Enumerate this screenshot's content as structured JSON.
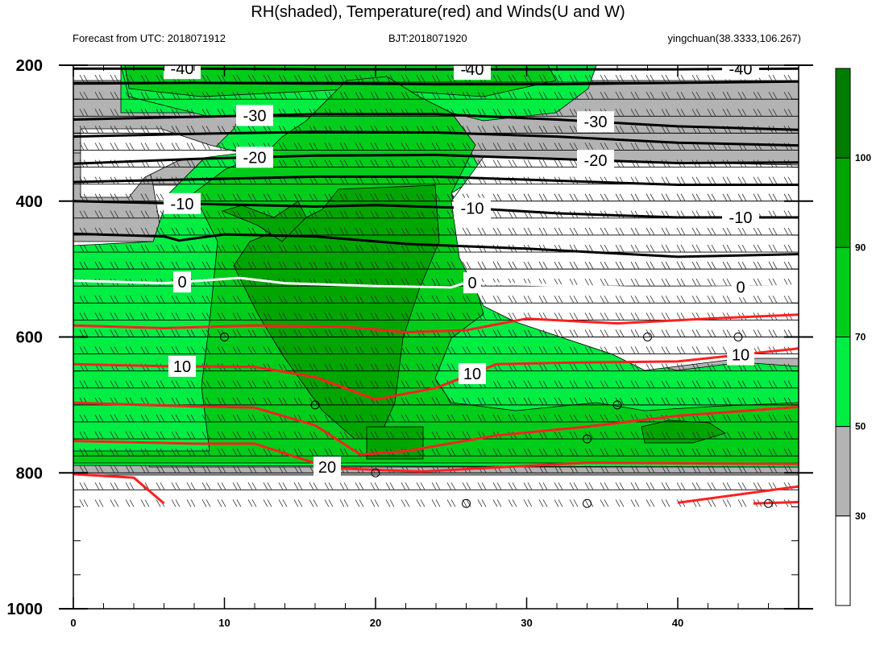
{
  "header": {
    "title": "RH(shaded), Temperature(red) and Winds(U and W)",
    "forecast": "Forecast from UTC: 2018071912",
    "bjt": "BJT:2018071920",
    "station": "yingchuan(38.3333,106.267)"
  },
  "chart_data": {
    "type": "heatmap",
    "title": "RH(shaded), Temperature(red) and Winds(U and W)",
    "x_ticks": [
      0,
      10,
      20,
      30,
      40
    ],
    "xlim": [
      0,
      48
    ],
    "y_ticks": [
      200,
      400,
      600,
      800,
      1000
    ],
    "ylim": [
      200,
      1000
    ],
    "y_inverted": true,
    "rh_levels": [
      30,
      50,
      70,
      90,
      100
    ],
    "rh_colors": [
      "#ffffff",
      "#b3b3b3",
      "#00ee44",
      "#00cd1a",
      "#00a600",
      "#007d00"
    ],
    "temperature_contours": [
      {
        "value": -40,
        "color": "#000000",
        "labels": [
          "-40",
          "-40",
          "-40"
        ],
        "points": [
          [
            0,
            205
          ],
          [
            8,
            205
          ],
          [
            16,
            206
          ],
          [
            24,
            206
          ],
          [
            32,
            206
          ],
          [
            40,
            206
          ],
          [
            48,
            205
          ]
        ]
      },
      {
        "value": -40,
        "color": "#000000",
        "labels": [],
        "points": [
          [
            0,
            227
          ],
          [
            8,
            226
          ],
          [
            16,
            227
          ],
          [
            24,
            228
          ],
          [
            32,
            228
          ],
          [
            40,
            226
          ],
          [
            48,
            224
          ]
        ]
      },
      {
        "value": -30,
        "color": "#000000",
        "labels": [
          "-30",
          "-30"
        ],
        "points": [
          [
            0,
            280
          ],
          [
            8,
            276
          ],
          [
            16,
            272
          ],
          [
            24,
            272
          ],
          [
            32,
            280
          ],
          [
            40,
            290
          ],
          [
            48,
            295
          ]
        ]
      },
      {
        "value": -30,
        "color": "#000000",
        "labels": [],
        "points": [
          [
            0,
            305
          ],
          [
            8,
            301
          ],
          [
            16,
            298
          ],
          [
            24,
            299
          ],
          [
            32,
            305
          ],
          [
            40,
            314
          ],
          [
            48,
            318
          ]
        ]
      },
      {
        "value": -20,
        "color": "#000000",
        "labels": [
          "-20",
          "-20"
        ],
        "points": [
          [
            0,
            345
          ],
          [
            8,
            338
          ],
          [
            16,
            333
          ],
          [
            24,
            332
          ],
          [
            32,
            338
          ],
          [
            40,
            344
          ],
          [
            48,
            343
          ]
        ]
      },
      {
        "value": -20,
        "color": "#000000",
        "labels": [],
        "points": [
          [
            0,
            372
          ],
          [
            8,
            368
          ],
          [
            16,
            364
          ],
          [
            24,
            364
          ],
          [
            32,
            370
          ],
          [
            40,
            376
          ],
          [
            48,
            376
          ]
        ]
      },
      {
        "value": -10,
        "color": "#000000",
        "labels": [
          "-10",
          "-10",
          "-10"
        ],
        "points": [
          [
            0,
            400
          ],
          [
            8,
            404
          ],
          [
            16,
            408
          ],
          [
            20,
            406
          ],
          [
            26,
            410
          ],
          [
            32,
            418
          ],
          [
            40,
            424
          ],
          [
            48,
            424
          ]
        ]
      },
      {
        "value": -10,
        "color": "#000000",
        "labels": [],
        "points": [
          [
            0,
            448
          ],
          [
            6,
            452
          ],
          [
            7,
            458
          ],
          [
            10,
            449
          ],
          [
            16,
            452
          ],
          [
            22,
            463
          ],
          [
            30,
            470
          ],
          [
            40,
            482
          ],
          [
            48,
            478
          ]
        ]
      },
      {
        "value": 0,
        "color": "#ffffff",
        "labels": [
          "0",
          "0",
          "0"
        ],
        "points": [
          [
            0,
            517
          ],
          [
            6,
            521
          ],
          [
            11,
            513
          ],
          [
            14,
            521
          ],
          [
            20,
            525
          ],
          [
            25,
            527
          ],
          [
            26,
            520
          ],
          [
            38,
            528
          ],
          [
            46,
            526
          ],
          [
            48,
            524
          ]
        ]
      },
      {
        "value": 0,
        "color": "#ff2020",
        "labels": [],
        "points": [
          [
            0,
            583
          ],
          [
            6,
            587
          ],
          [
            12,
            583
          ],
          [
            18,
            585
          ],
          [
            22,
            593
          ],
          [
            26,
            590
          ],
          [
            30,
            573
          ],
          [
            36,
            580
          ],
          [
            42,
            573
          ],
          [
            48,
            567
          ]
        ]
      },
      {
        "value": 10,
        "color": "#ff2020",
        "labels": [
          "10",
          "10",
          "10"
        ],
        "points": [
          [
            0,
            640
          ],
          [
            6,
            643
          ],
          [
            12,
            644
          ],
          [
            16,
            659
          ],
          [
            20,
            692
          ],
          [
            24,
            675
          ],
          [
            28,
            640
          ],
          [
            32,
            638
          ],
          [
            40,
            636
          ],
          [
            48,
            617
          ]
        ]
      },
      {
        "value": 10,
        "color": "#ff2020",
        "labels": [],
        "points": [
          [
            0,
            697
          ],
          [
            8,
            702
          ],
          [
            12,
            704
          ],
          [
            16,
            730
          ],
          [
            19,
            773
          ],
          [
            22,
            768
          ],
          [
            28,
            745
          ],
          [
            34,
            732
          ],
          [
            40,
            716
          ],
          [
            48,
            703
          ]
        ]
      },
      {
        "value": 20,
        "color": "#ff2020",
        "labels": [
          "20"
        ],
        "points": [
          [
            0,
            753
          ],
          [
            8,
            757
          ],
          [
            12,
            757
          ],
          [
            17,
            793
          ],
          [
            23,
            798
          ],
          [
            28,
            792
          ],
          [
            34,
            785
          ],
          [
            40,
            786
          ],
          [
            48,
            787
          ]
        ]
      },
      {
        "value": 20,
        "color": "#ff2020",
        "labels": [],
        "points": [
          [
            0,
            802
          ],
          [
            4,
            807
          ],
          [
            6,
            845
          ]
        ]
      },
      {
        "value": 20,
        "color": "#ff2020",
        "labels": [],
        "points": [
          [
            40,
            844
          ],
          [
            48,
            820
          ]
        ]
      },
      {
        "value": 20,
        "color": "#ff2020",
        "labels": [],
        "points": [
          [
            45,
            845
          ],
          [
            48,
            843
          ]
        ]
      }
    ],
    "calm_marks": [
      [
        10,
        600
      ],
      [
        16,
        700
      ],
      [
        20,
        800
      ],
      [
        26,
        845
      ],
      [
        34,
        845
      ],
      [
        34,
        750
      ],
      [
        36,
        700
      ],
      [
        38,
        600
      ],
      [
        44,
        600
      ],
      [
        46,
        845
      ]
    ]
  }
}
